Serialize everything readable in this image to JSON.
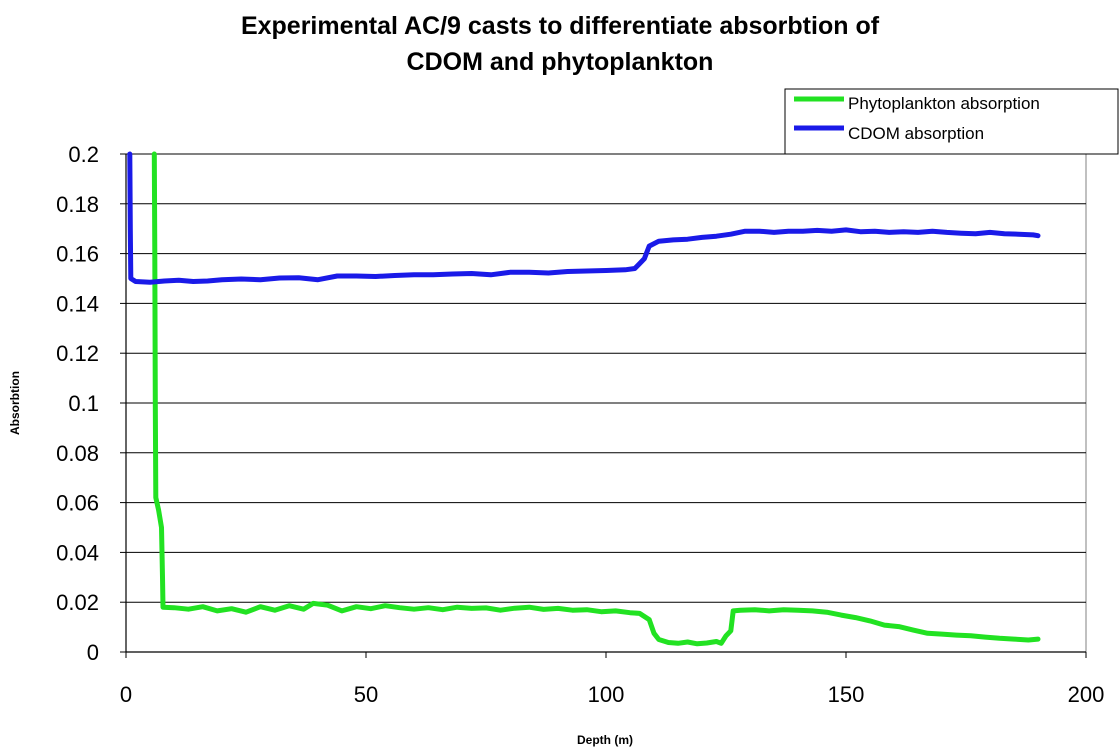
{
  "chart_data": {
    "type": "line",
    "title_lines": [
      "Experimental AC/9 casts to differentiate absorbtion of",
      "CDOM and phytoplankton"
    ],
    "xlabel": "Depth (m)",
    "ylabel": "Absorbtion",
    "xlim": [
      0,
      200
    ],
    "ylim": [
      0,
      0.2
    ],
    "x_ticks": [
      0,
      50,
      100,
      150,
      200
    ],
    "x_tick_labels": [
      "0",
      "50",
      "100",
      "150",
      "200"
    ],
    "y_ticks": [
      0,
      0.02,
      0.04,
      0.06,
      0.08,
      0.1,
      0.12,
      0.14,
      0.16,
      0.18,
      0.2
    ],
    "y_tick_labels": [
      "0",
      "0.02",
      "0.04",
      "0.06",
      "0.08",
      "0.1",
      "0.12",
      "0.14",
      "0.16",
      "0.18",
      "0.2"
    ],
    "grid": "horizontal",
    "legend_position": "top-right",
    "series": [
      {
        "name": "Phytoplankton absorption",
        "color": "#22e222",
        "points": [
          [
            5.9,
            0.2
          ],
          [
            6.0,
            0.16
          ],
          [
            6.1,
            0.1
          ],
          [
            6.2,
            0.062
          ],
          [
            6.8,
            0.057
          ],
          [
            7.4,
            0.05
          ],
          [
            7.6,
            0.03
          ],
          [
            7.7,
            0.018
          ],
          [
            10,
            0.0178
          ],
          [
            13,
            0.0172
          ],
          [
            16,
            0.0182
          ],
          [
            19,
            0.0165
          ],
          [
            22,
            0.0174
          ],
          [
            25,
            0.016
          ],
          [
            28,
            0.0182
          ],
          [
            31,
            0.0168
          ],
          [
            34,
            0.0186
          ],
          [
            37,
            0.0172
          ],
          [
            39,
            0.0195
          ],
          [
            42,
            0.0188
          ],
          [
            45,
            0.0165
          ],
          [
            48,
            0.0182
          ],
          [
            51,
            0.0174
          ],
          [
            54,
            0.0186
          ],
          [
            57,
            0.0178
          ],
          [
            60,
            0.0172
          ],
          [
            63,
            0.0178
          ],
          [
            66,
            0.017
          ],
          [
            69,
            0.018
          ],
          [
            72,
            0.0175
          ],
          [
            75,
            0.0177
          ],
          [
            78,
            0.0168
          ],
          [
            81,
            0.0176
          ],
          [
            84,
            0.018
          ],
          [
            87,
            0.0171
          ],
          [
            90,
            0.0175
          ],
          [
            93,
            0.0168
          ],
          [
            96,
            0.017
          ],
          [
            99,
            0.0162
          ],
          [
            102,
            0.0165
          ],
          [
            105,
            0.0158
          ],
          [
            107,
            0.0155
          ],
          [
            109,
            0.013
          ],
          [
            110,
            0.0075
          ],
          [
            111,
            0.005
          ],
          [
            113,
            0.0038
          ],
          [
            115,
            0.0035
          ],
          [
            117,
            0.004
          ],
          [
            119,
            0.0033
          ],
          [
            121,
            0.0036
          ],
          [
            123,
            0.0042
          ],
          [
            124,
            0.0035
          ],
          [
            125,
            0.0065
          ],
          [
            126,
            0.0085
          ],
          [
            126.5,
            0.0165
          ],
          [
            128,
            0.0168
          ],
          [
            131,
            0.017
          ],
          [
            134,
            0.0165
          ],
          [
            137,
            0.017
          ],
          [
            140,
            0.0168
          ],
          [
            143,
            0.0165
          ],
          [
            146,
            0.016
          ],
          [
            149,
            0.0148
          ],
          [
            152,
            0.0138
          ],
          [
            155,
            0.0125
          ],
          [
            158,
            0.0108
          ],
          [
            161,
            0.0102
          ],
          [
            164,
            0.0088
          ],
          [
            167,
            0.0075
          ],
          [
            170,
            0.0072
          ],
          [
            173,
            0.0068
          ],
          [
            176,
            0.0065
          ],
          [
            179,
            0.006
          ],
          [
            182,
            0.0055
          ],
          [
            185,
            0.0052
          ],
          [
            188,
            0.0048
          ],
          [
            190,
            0.0052
          ]
        ]
      },
      {
        "name": "CDOM absorption",
        "color": "#1a1ae8",
        "points": [
          [
            0.8,
            0.2
          ],
          [
            0.9,
            0.17
          ],
          [
            1.0,
            0.15
          ],
          [
            2,
            0.1488
          ],
          [
            5,
            0.1485
          ],
          [
            8,
            0.149
          ],
          [
            11,
            0.1493
          ],
          [
            14,
            0.1488
          ],
          [
            17,
            0.149
          ],
          [
            20,
            0.1495
          ],
          [
            24,
            0.1498
          ],
          [
            28,
            0.1495
          ],
          [
            32,
            0.1502
          ],
          [
            36,
            0.1503
          ],
          [
            40,
            0.1495
          ],
          [
            44,
            0.151
          ],
          [
            48,
            0.151
          ],
          [
            52,
            0.1508
          ],
          [
            56,
            0.1512
          ],
          [
            60,
            0.1515
          ],
          [
            64,
            0.1515
          ],
          [
            68,
            0.1518
          ],
          [
            72,
            0.152
          ],
          [
            76,
            0.1515
          ],
          [
            80,
            0.1525
          ],
          [
            84,
            0.1525
          ],
          [
            88,
            0.1522
          ],
          [
            92,
            0.1528
          ],
          [
            96,
            0.153
          ],
          [
            100,
            0.1532
          ],
          [
            104,
            0.1535
          ],
          [
            106,
            0.154
          ],
          [
            107,
            0.156
          ],
          [
            108,
            0.158
          ],
          [
            109,
            0.163
          ],
          [
            111,
            0.165
          ],
          [
            114,
            0.1655
          ],
          [
            117,
            0.1658
          ],
          [
            120,
            0.1665
          ],
          [
            123,
            0.167
          ],
          [
            126,
            0.1678
          ],
          [
            129,
            0.169
          ],
          [
            132,
            0.169
          ],
          [
            135,
            0.1685
          ],
          [
            138,
            0.169
          ],
          [
            141,
            0.169
          ],
          [
            144,
            0.1693
          ],
          [
            147,
            0.169
          ],
          [
            150,
            0.1695
          ],
          [
            153,
            0.1688
          ],
          [
            156,
            0.169
          ],
          [
            159,
            0.1685
          ],
          [
            162,
            0.1688
          ],
          [
            165,
            0.1685
          ],
          [
            168,
            0.169
          ],
          [
            171,
            0.1685
          ],
          [
            174,
            0.1682
          ],
          [
            177,
            0.168
          ],
          [
            180,
            0.1685
          ],
          [
            183,
            0.168
          ],
          [
            186,
            0.1678
          ],
          [
            189,
            0.1675
          ],
          [
            190,
            0.1672
          ]
        ]
      }
    ]
  }
}
